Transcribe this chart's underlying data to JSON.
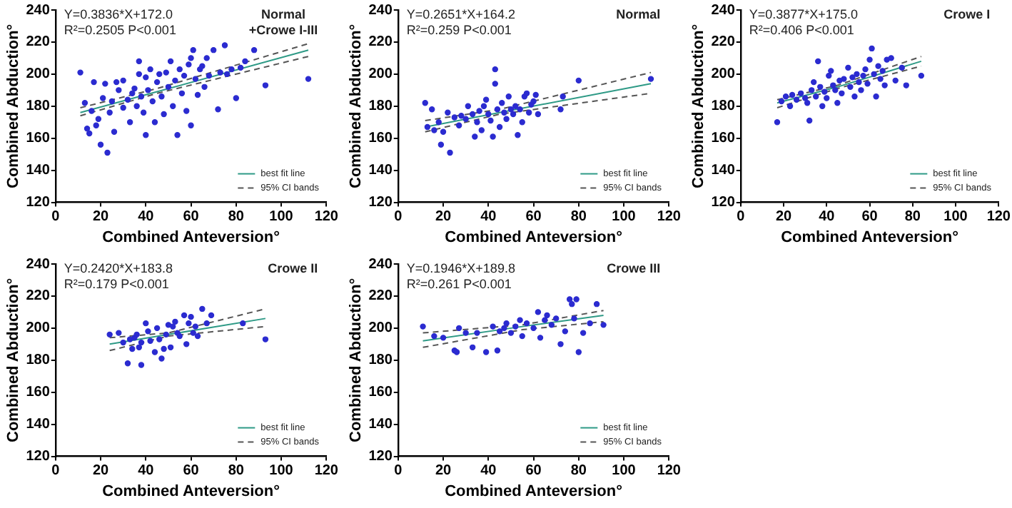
{
  "chart_data": [
    {
      "type": "scatter",
      "title": "Normal +Crowe I-III",
      "xlabel": "Combined Anteversion°",
      "ylabel": "Combined Abduction°",
      "xlim": [
        0,
        120
      ],
      "ylim": [
        120,
        240
      ],
      "xticks": [
        0,
        20,
        40,
        60,
        80,
        100,
        120
      ],
      "yticks": [
        120,
        140,
        160,
        180,
        200,
        220,
        240
      ],
      "legend": "bottom right",
      "annotations": [
        "Y=0.3836*X+172.0",
        "R²=0.2505 P<0.001"
      ],
      "series": [
        {
          "marker": "circle",
          "color": "#2b2bd0",
          "x": [
            11,
            13,
            14,
            15,
            16,
            17,
            18,
            19,
            20,
            21,
            22,
            23,
            24,
            25,
            26,
            27,
            28,
            30,
            30,
            32,
            33,
            34,
            35,
            36,
            37,
            37,
            38,
            39,
            40,
            40,
            41,
            42,
            43,
            44,
            45,
            46,
            47,
            48,
            49,
            50,
            51,
            52,
            53,
            54,
            55,
            56,
            57,
            58,
            59,
            60,
            60,
            61,
            62,
            63,
            64,
            65,
            66,
            67,
            68,
            70,
            72,
            73,
            75,
            76,
            78,
            80,
            82,
            84,
            88,
            93,
            112
          ],
          "values": [
            201,
            182,
            166,
            163,
            177,
            195,
            168,
            172,
            156,
            185,
            194,
            151,
            176,
            183,
            164,
            195,
            190,
            179,
            196,
            184,
            170,
            188,
            191,
            180,
            208,
            200,
            186,
            176,
            198,
            162,
            190,
            203,
            183,
            170,
            195,
            200,
            186,
            175,
            201,
            192,
            208,
            180,
            196,
            162,
            203,
            188,
            199,
            177,
            206,
            210,
            168,
            215,
            197,
            187,
            203,
            205,
            192,
            210,
            199,
            215,
            178,
            201,
            218,
            200,
            203,
            185,
            204,
            208,
            215,
            193,
            197
          ]
        },
        {
          "type": "line",
          "name": "best fit line",
          "color": "#2e9a86",
          "x": [
            11,
            45,
            112
          ],
          "values": [
            176,
            189,
            215
          ]
        },
        {
          "type": "line",
          "name": "95% CI bands",
          "line_style": "dashed",
          "color": "#555555",
          "x": [
            11,
            45,
            112
          ],
          "values": [
            179,
            191,
            219
          ]
        },
        {
          "type": "line",
          "line_style": "dashed",
          "color": "#555555",
          "x": [
            11,
            45,
            112
          ],
          "values": [
            174,
            188,
            211
          ]
        }
      ]
    },
    {
      "type": "scatter",
      "title": "Normal",
      "xlabel": "Combined Anteversion°",
      "ylabel": "Combined Abduction°",
      "xlim": [
        0,
        120
      ],
      "ylim": [
        120,
        240
      ],
      "xticks": [
        0,
        20,
        40,
        60,
        80,
        100,
        120
      ],
      "yticks": [
        120,
        140,
        160,
        180,
        200,
        220,
        240
      ],
      "legend": "bottom right",
      "annotations": [
        "Y=0.2651*X+164.2",
        "R²=0.259 P<0.001"
      ],
      "series": [
        {
          "marker": "circle",
          "color": "#2b2bd0",
          "x": [
            12,
            13,
            15,
            16,
            18,
            19,
            20,
            22,
            23,
            25,
            27,
            28,
            30,
            31,
            33,
            34,
            35,
            36,
            37,
            38,
            39,
            40,
            41,
            42,
            43,
            43,
            44,
            45,
            46,
            47,
            48,
            49,
            50,
            51,
            52,
            53,
            54,
            55,
            56,
            57,
            58,
            59,
            60,
            61,
            62,
            72,
            73,
            80,
            112
          ],
          "values": [
            182,
            167,
            178,
            165,
            170,
            156,
            164,
            176,
            151,
            173,
            168,
            174,
            172,
            180,
            175,
            161,
            170,
            177,
            165,
            180,
            184,
            175,
            171,
            161,
            203,
            194,
            178,
            167,
            182,
            176,
            172,
            186,
            178,
            175,
            180,
            162,
            178,
            170,
            186,
            188,
            176,
            181,
            183,
            187,
            175,
            178,
            186,
            196,
            197
          ]
        },
        {
          "type": "line",
          "name": "best fit line",
          "color": "#2e9a86",
          "x": [
            12,
            45,
            112
          ],
          "values": [
            167,
            176,
            194
          ]
        },
        {
          "type": "line",
          "name": "95% CI bands",
          "line_style": "dashed",
          "color": "#555555",
          "x": [
            12,
            45,
            112
          ],
          "values": [
            171,
            178,
            201
          ]
        },
        {
          "type": "line",
          "line_style": "dashed",
          "color": "#555555",
          "x": [
            12,
            45,
            112
          ],
          "values": [
            164,
            175,
            188
          ]
        }
      ]
    },
    {
      "type": "scatter",
      "title": "Crowe I",
      "xlabel": "Combined Anteversion°",
      "ylabel": "Combined Abduction°",
      "xlim": [
        0,
        120
      ],
      "ylim": [
        120,
        240
      ],
      "xticks": [
        0,
        20,
        40,
        60,
        80,
        100,
        120
      ],
      "yticks": [
        120,
        140,
        160,
        180,
        200,
        220,
        240
      ],
      "legend": "bottom right",
      "annotations": [
        "Y=0.3877*X+175.0",
        "R²=0.406 P<0.001"
      ],
      "series": [
        {
          "marker": "circle",
          "color": "#2b2bd0",
          "x": [
            17,
            19,
            21,
            23,
            24,
            26,
            28,
            30,
            31,
            32,
            33,
            34,
            35,
            36,
            37,
            38,
            39,
            40,
            41,
            42,
            43,
            44,
            45,
            46,
            47,
            48,
            50,
            51,
            52,
            53,
            54,
            55,
            56,
            57,
            58,
            59,
            60,
            61,
            62,
            63,
            64,
            65,
            66,
            67,
            68,
            70,
            72,
            75,
            77,
            84
          ],
          "values": [
            170,
            183,
            186,
            180,
            187,
            184,
            188,
            185,
            182,
            171,
            190,
            195,
            186,
            208,
            192,
            180,
            189,
            185,
            199,
            202,
            193,
            190,
            182,
            196,
            188,
            197,
            204,
            192,
            198,
            186,
            200,
            195,
            190,
            199,
            203,
            194,
            209,
            216,
            200,
            186,
            205,
            197,
            202,
            193,
            209,
            210,
            196,
            204,
            193,
            199
          ]
        },
        {
          "type": "line",
          "name": "best fit line",
          "color": "#2e9a86",
          "x": [
            17,
            45,
            84
          ],
          "values": [
            182,
            192,
            208
          ]
        },
        {
          "type": "line",
          "name": "95% CI bands",
          "line_style": "dashed",
          "color": "#555555",
          "x": [
            17,
            45,
            84
          ],
          "values": [
            184,
            193,
            211
          ]
        },
        {
          "type": "line",
          "line_style": "dashed",
          "color": "#555555",
          "x": [
            17,
            45,
            84
          ],
          "values": [
            179,
            191,
            205
          ]
        }
      ]
    },
    {
      "type": "scatter",
      "title": "Crowe II",
      "xlabel": "Combined Anteversion°",
      "ylabel": "Combined Abduction°",
      "xlim": [
        0,
        120
      ],
      "ylim": [
        120,
        240
      ],
      "xticks": [
        0,
        20,
        40,
        60,
        80,
        100,
        120
      ],
      "yticks": [
        120,
        140,
        160,
        180,
        200,
        220,
        240
      ],
      "legend": "bottom right",
      "annotations": [
        "Y=0.2420*X+183.8",
        "R²=0.179 P<0.001"
      ],
      "series": [
        {
          "marker": "circle",
          "color": "#2b2bd0",
          "x": [
            24,
            28,
            30,
            32,
            33,
            34,
            35,
            36,
            37,
            38,
            38,
            40,
            41,
            42,
            44,
            45,
            46,
            47,
            48,
            49,
            50,
            51,
            52,
            53,
            54,
            55,
            57,
            58,
            59,
            60,
            61,
            62,
            63,
            65,
            67,
            69,
            83,
            93
          ],
          "values": [
            196,
            197,
            191,
            178,
            193,
            187,
            194,
            196,
            188,
            177,
            191,
            203,
            198,
            192,
            185,
            200,
            193,
            181,
            187,
            196,
            202,
            188,
            201,
            204,
            197,
            195,
            208,
            190,
            203,
            207,
            197,
            201,
            195,
            212,
            203,
            208,
            203,
            193
          ]
        },
        {
          "type": "line",
          "name": "best fit line",
          "color": "#2e9a86",
          "x": [
            24,
            50,
            93
          ],
          "values": [
            190,
            196,
            206
          ]
        },
        {
          "type": "line",
          "name": "95% CI bands",
          "line_style": "dashed",
          "color": "#555555",
          "x": [
            24,
            50,
            93
          ],
          "values": [
            194,
            197,
            212
          ]
        },
        {
          "type": "line",
          "line_style": "dashed",
          "color": "#555555",
          "x": [
            24,
            50,
            93
          ],
          "values": [
            186,
            195,
            201
          ]
        }
      ]
    },
    {
      "type": "scatter",
      "title": "Crowe III",
      "xlabel": "Combined Anteversion°",
      "ylabel": "Combined Abduction°",
      "xlim": [
        0,
        120
      ],
      "ylim": [
        120,
        240
      ],
      "xticks": [
        0,
        20,
        40,
        60,
        80,
        100,
        120
      ],
      "yticks": [
        120,
        140,
        160,
        180,
        200,
        220,
        240
      ],
      "legend": "bottom right",
      "annotations": [
        "Y=0.1946*X+189.8",
        "R²=0.261 P<0.001"
      ],
      "series": [
        {
          "marker": "circle",
          "color": "#2b2bd0",
          "x": [
            11,
            16,
            20,
            25,
            26,
            27,
            30,
            33,
            35,
            39,
            42,
            44,
            45,
            47,
            48,
            50,
            52,
            54,
            55,
            57,
            60,
            62,
            63,
            65,
            66,
            68,
            70,
            72,
            74,
            76,
            77,
            78,
            79,
            80,
            82,
            85,
            88,
            91
          ],
          "values": [
            201,
            195,
            194,
            186,
            185,
            200,
            197,
            188,
            197,
            185,
            201,
            186,
            198,
            200,
            203,
            197,
            201,
            205,
            195,
            203,
            200,
            210,
            194,
            205,
            208,
            202,
            206,
            190,
            198,
            218,
            215,
            206,
            218,
            185,
            197,
            203,
            215,
            202
          ]
        },
        {
          "type": "line",
          "name": "best fit line",
          "color": "#2e9a86",
          "x": [
            11,
            55,
            91
          ],
          "values": [
            192,
            201,
            208
          ]
        },
        {
          "type": "line",
          "name": "95% CI bands",
          "line_style": "dashed",
          "color": "#555555",
          "x": [
            11,
            55,
            91
          ],
          "values": [
            197,
            202,
            211
          ]
        },
        {
          "type": "line",
          "line_style": "dashed",
          "color": "#555555",
          "x": [
            11,
            55,
            91
          ],
          "values": [
            188,
            199,
            204
          ]
        }
      ]
    }
  ]
}
